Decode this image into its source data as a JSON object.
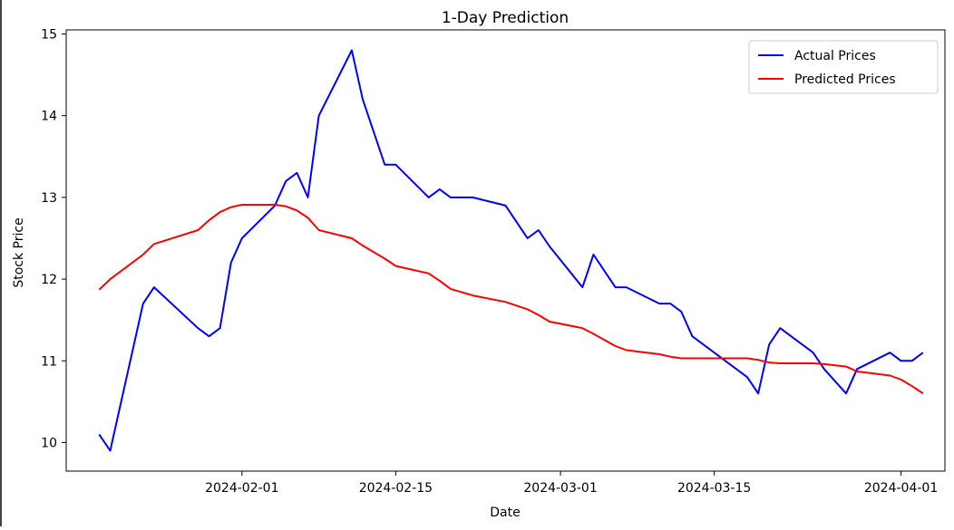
{
  "chart_data": {
    "type": "line",
    "title": "1-Day Prediction",
    "xlabel": "Date",
    "ylabel": "Stock Price",
    "x_is_date": true,
    "xlim": [
      "2024-01-16",
      "2024-04-05"
    ],
    "ylim": [
      9.65,
      15.05
    ],
    "x_ticks": [
      "2024-02-01",
      "2024-02-15",
      "2024-03-01",
      "2024-03-15",
      "2024-04-01"
    ],
    "y_ticks": [
      10,
      11,
      12,
      13,
      14,
      15
    ],
    "grid": false,
    "legend_position": "upper right",
    "series": [
      {
        "name": "Actual Prices",
        "color": "#0000ff",
        "points": [
          [
            "2024-01-19",
            10.1
          ],
          [
            "2024-01-20",
            9.9
          ],
          [
            "2024-01-23",
            11.7
          ],
          [
            "2024-01-24",
            11.9
          ],
          [
            "2024-01-28",
            11.4
          ],
          [
            "2024-01-29",
            11.3
          ],
          [
            "2024-01-30",
            11.4
          ],
          [
            "2024-01-31",
            12.2
          ],
          [
            "2024-02-01",
            12.5
          ],
          [
            "2024-02-04",
            12.9
          ],
          [
            "2024-02-05",
            13.2
          ],
          [
            "2024-02-06",
            13.3
          ],
          [
            "2024-02-07",
            13.0
          ],
          [
            "2024-02-08",
            14.0
          ],
          [
            "2024-02-11",
            14.8
          ],
          [
            "2024-02-12",
            14.2
          ],
          [
            "2024-02-14",
            13.4
          ],
          [
            "2024-02-15",
            13.4
          ],
          [
            "2024-02-18",
            13.0
          ],
          [
            "2024-02-19",
            13.1
          ],
          [
            "2024-02-20",
            13.0
          ],
          [
            "2024-02-22",
            13.0
          ],
          [
            "2024-02-25",
            12.9
          ],
          [
            "2024-02-27",
            12.5
          ],
          [
            "2024-02-28",
            12.6
          ],
          [
            "2024-02-29",
            12.4
          ],
          [
            "2024-03-03",
            11.9
          ],
          [
            "2024-03-04",
            12.3
          ],
          [
            "2024-03-06",
            11.9
          ],
          [
            "2024-03-07",
            11.9
          ],
          [
            "2024-03-10",
            11.7
          ],
          [
            "2024-03-11",
            11.7
          ],
          [
            "2024-03-12",
            11.6
          ],
          [
            "2024-03-13",
            11.3
          ],
          [
            "2024-03-18",
            10.8
          ],
          [
            "2024-03-19",
            10.6
          ],
          [
            "2024-03-20",
            11.2
          ],
          [
            "2024-03-21",
            11.4
          ],
          [
            "2024-03-24",
            11.1
          ],
          [
            "2024-03-25",
            10.9
          ],
          [
            "2024-03-27",
            10.6
          ],
          [
            "2024-03-28",
            10.9
          ],
          [
            "2024-03-31",
            11.1
          ],
          [
            "2024-04-01",
            11.0
          ],
          [
            "2024-04-02",
            11.0
          ],
          [
            "2024-04-03",
            11.1
          ]
        ]
      },
      {
        "name": "Predicted Prices",
        "color": "#ff0000",
        "points": [
          [
            "2024-01-19",
            11.87
          ],
          [
            "2024-01-20",
            12.0
          ],
          [
            "2024-01-23",
            12.3
          ],
          [
            "2024-01-24",
            12.43
          ],
          [
            "2024-01-28",
            12.6
          ],
          [
            "2024-01-29",
            12.72
          ],
          [
            "2024-01-30",
            12.82
          ],
          [
            "2024-01-31",
            12.88
          ],
          [
            "2024-02-01",
            12.91
          ],
          [
            "2024-02-04",
            12.91
          ],
          [
            "2024-02-05",
            12.89
          ],
          [
            "2024-02-06",
            12.84
          ],
          [
            "2024-02-07",
            12.75
          ],
          [
            "2024-02-08",
            12.6
          ],
          [
            "2024-02-11",
            12.5
          ],
          [
            "2024-02-12",
            12.41
          ],
          [
            "2024-02-14",
            12.25
          ],
          [
            "2024-02-15",
            12.16
          ],
          [
            "2024-02-18",
            12.07
          ],
          [
            "2024-02-19",
            11.98
          ],
          [
            "2024-02-20",
            11.88
          ],
          [
            "2024-02-22",
            11.8
          ],
          [
            "2024-02-25",
            11.72
          ],
          [
            "2024-02-27",
            11.63
          ],
          [
            "2024-02-28",
            11.56
          ],
          [
            "2024-02-29",
            11.48
          ],
          [
            "2024-03-03",
            11.4
          ],
          [
            "2024-03-04",
            11.33
          ],
          [
            "2024-03-06",
            11.18
          ],
          [
            "2024-03-07",
            11.13
          ],
          [
            "2024-03-10",
            11.08
          ],
          [
            "2024-03-11",
            11.05
          ],
          [
            "2024-03-12",
            11.03
          ],
          [
            "2024-03-13",
            11.03
          ],
          [
            "2024-03-18",
            11.03
          ],
          [
            "2024-03-19",
            11.01
          ],
          [
            "2024-03-20",
            10.98
          ],
          [
            "2024-03-21",
            10.97
          ],
          [
            "2024-03-24",
            10.97
          ],
          [
            "2024-03-25",
            10.96
          ],
          [
            "2024-03-27",
            10.93
          ],
          [
            "2024-03-28",
            10.87
          ],
          [
            "2024-03-31",
            10.82
          ],
          [
            "2024-04-01",
            10.77
          ],
          [
            "2024-04-02",
            10.69
          ],
          [
            "2024-04-03",
            10.6
          ]
        ]
      }
    ]
  }
}
